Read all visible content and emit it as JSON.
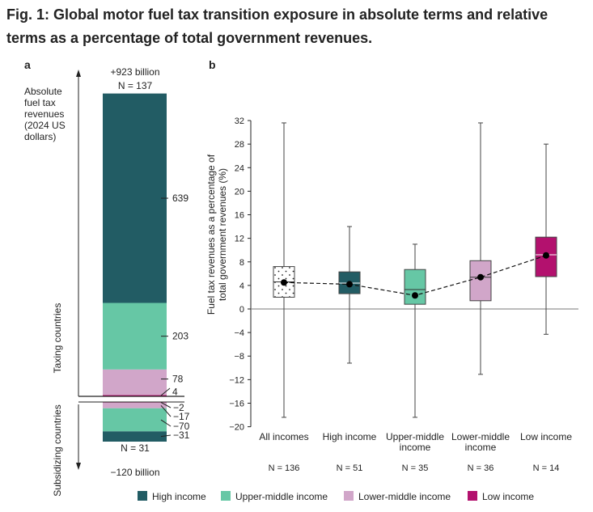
{
  "figure": {
    "title": "Fig. 1: Global motor fuel tax transition exposure in absolute terms and relative terms as a percentage of total government revenues."
  },
  "panel_a": {
    "label": "a",
    "top_total": "+923 billion",
    "top_n": "N = 137",
    "bottom_total": "−120 billion",
    "bottom_n": "N = 31",
    "ylabel_lines": [
      "Absolute",
      "fuel tax",
      "revenues",
      "(2024 US",
      "dollars)"
    ],
    "taxing_label": "Taxing countries",
    "subsidizing_label": "Subsidizing countries",
    "segment_labels": [
      "639",
      "203",
      "78",
      "4",
      "−2",
      "−17",
      "−70",
      "−31"
    ]
  },
  "panel_b": {
    "label": "b",
    "ylabel_lines": [
      "Fuel tax revenues as a percentage of",
      "total government revenues (%)"
    ],
    "category_labels": [
      [
        "All incomes"
      ],
      [
        "High income"
      ],
      [
        "Upper-middle",
        "income"
      ],
      [
        "Lower-middle",
        "income"
      ],
      [
        "Low income"
      ]
    ],
    "n_labels": [
      "N = 136",
      "N = 51",
      "N = 35",
      "N = 36",
      "N = 14"
    ]
  },
  "legend": {
    "items": [
      {
        "label": "High income",
        "color": "#225c64"
      },
      {
        "label": "Upper-middle income",
        "color": "#66c7a5"
      },
      {
        "label": "Lower-middle income",
        "color": "#d1a6c9"
      },
      {
        "label": "Low income",
        "color": "#b3116e"
      }
    ]
  },
  "chart_data": [
    {
      "type": "bar",
      "panel": "a",
      "title": "",
      "ylabel": "Absolute fuel tax revenues (2024 US dollars)",
      "unit": "billion",
      "stacked": true,
      "groups": [
        {
          "name": "Taxing countries",
          "total": 923,
          "n": 137,
          "segments": [
            {
              "series": "High income",
              "value": 639
            },
            {
              "series": "Upper-middle income",
              "value": 203
            },
            {
              "series": "Lower-middle income",
              "value": 78
            },
            {
              "series": "Low income",
              "value": 4
            }
          ]
        },
        {
          "name": "Subsidizing countries",
          "total": -120,
          "n": 31,
          "segments": [
            {
              "series": "Low income",
              "value": -2
            },
            {
              "series": "Lower-middle income",
              "value": -17
            },
            {
              "series": "Upper-middle income",
              "value": -70
            },
            {
              "series": "High income",
              "value": -31
            }
          ]
        }
      ]
    },
    {
      "type": "box",
      "panel": "b",
      "title": "",
      "ylabel": "Fuel tax revenues as a percentage of total government revenues (%)",
      "ylim": [
        -20,
        32
      ],
      "yticks": [
        32,
        28,
        24,
        20,
        16,
        12,
        8,
        4,
        0,
        -4,
        -8,
        -12,
        -16,
        -20
      ],
      "categories": [
        "All incomes",
        "High income",
        "Upper-middle income",
        "Lower-middle income",
        "Low income"
      ],
      "n": [
        136,
        51,
        35,
        36,
        14
      ],
      "boxes": [
        {
          "category": "All incomes",
          "min": -18.4,
          "q1": 2.0,
          "median": 4.6,
          "q3": 7.2,
          "max": 31.6,
          "mean": 4.5
        },
        {
          "category": "High income",
          "min": -9.2,
          "q1": 2.6,
          "median": 4.4,
          "q3": 6.3,
          "max": 14.0,
          "mean": 4.2
        },
        {
          "category": "Upper-middle income",
          "min": -18.4,
          "q1": 0.8,
          "median": 3.3,
          "q3": 6.7,
          "max": 11.0,
          "mean": 2.3
        },
        {
          "category": "Lower-middle income",
          "min": -11.1,
          "q1": 1.4,
          "median": 5.4,
          "q3": 8.2,
          "max": 31.6,
          "mean": 5.4
        },
        {
          "category": "Low income",
          "min": -4.3,
          "q1": 5.5,
          "median": 9.2,
          "q3": 12.2,
          "max": 28.0,
          "mean": 9.1
        }
      ],
      "mean_line": "dashed"
    }
  ]
}
